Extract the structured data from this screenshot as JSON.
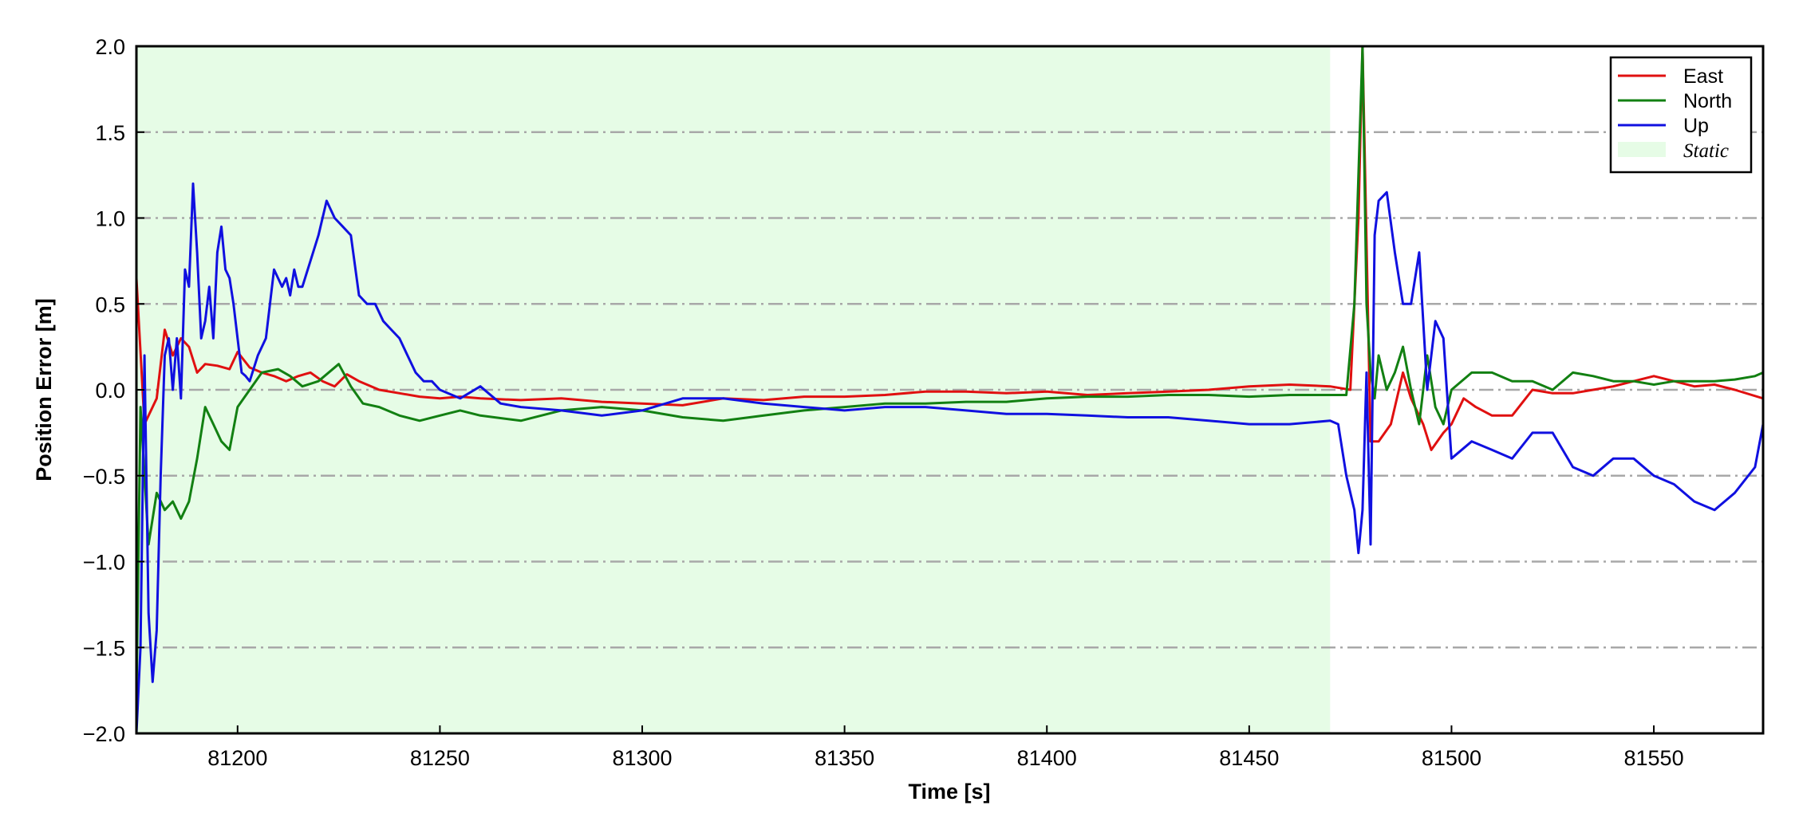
{
  "chart_data": {
    "type": "line",
    "xlabel": "Time [s]",
    "ylabel": "Position Error [m]",
    "xlim": [
      81175,
      81577
    ],
    "ylim": [
      -2.0,
      2.0
    ],
    "xticks": [
      81200,
      81250,
      81300,
      81350,
      81400,
      81450,
      81500,
      81550
    ],
    "xtick_labels": [
      "81200",
      "81250",
      "81300",
      "81350",
      "81400",
      "81450",
      "81500",
      "81550"
    ],
    "yticks": [
      -2.0,
      -1.5,
      -1.0,
      -0.5,
      0.0,
      0.5,
      1.0,
      1.5,
      2.0
    ],
    "ytick_labels": [
      "−2.0",
      "−1.5",
      "−1.0",
      "−0.5",
      "0.0",
      "0.5",
      "1.0",
      "1.5",
      "2.0"
    ],
    "grid": "horizontal dash-dot",
    "legend_position": "top-right",
    "static_interval": {
      "name": "Static",
      "x": [
        81175,
        81470
      ],
      "color": "#e6fce6"
    },
    "series": [
      {
        "name": "East",
        "color": "#e01010",
        "x": [
          81175,
          81177,
          81180,
          81182,
          81184,
          81186,
          81188,
          81190,
          81192,
          81195,
          81198,
          81200,
          81203,
          81206,
          81209,
          81212,
          81215,
          81218,
          81221,
          81224,
          81227,
          81230,
          81235,
          81240,
          81245,
          81250,
          81255,
          81260,
          81270,
          81280,
          81290,
          81300,
          81310,
          81320,
          81330,
          81340,
          81350,
          81360,
          81370,
          81380,
          81390,
          81400,
          81410,
          81420,
          81430,
          81440,
          81450,
          81460,
          81470,
          81475,
          81477,
          81478,
          81480,
          81482,
          81485,
          81488,
          81490,
          81493,
          81495,
          81498,
          81500,
          81503,
          81506,
          81510,
          81515,
          81520,
          81525,
          81530,
          81535,
          81540,
          81545,
          81550,
          81555,
          81560,
          81565,
          81570,
          81577
        ],
        "y": [
          0.65,
          -0.2,
          -0.05,
          0.35,
          0.2,
          0.3,
          0.25,
          0.1,
          0.15,
          0.14,
          0.12,
          0.22,
          0.13,
          0.1,
          0.08,
          0.05,
          0.08,
          0.1,
          0.05,
          0.02,
          0.09,
          0.05,
          0.0,
          -0.02,
          -0.04,
          -0.05,
          -0.04,
          -0.05,
          -0.06,
          -0.05,
          -0.07,
          -0.08,
          -0.09,
          -0.05,
          -0.06,
          -0.04,
          -0.04,
          -0.03,
          -0.01,
          -0.01,
          -0.02,
          -0.01,
          -0.03,
          -0.02,
          -0.01,
          0.0,
          0.02,
          0.03,
          0.02,
          0.0,
          1.0,
          2.0,
          -0.3,
          -0.3,
          -0.2,
          0.1,
          -0.05,
          -0.2,
          -0.35,
          -0.25,
          -0.2,
          -0.05,
          -0.1,
          -0.15,
          -0.15,
          0.0,
          -0.02,
          -0.02,
          0.0,
          0.02,
          0.05,
          0.08,
          0.05,
          0.02,
          0.03,
          0.0,
          -0.05
        ]
      },
      {
        "name": "North",
        "color": "#128012",
        "x": [
          81175,
          81176,
          81178,
          81180,
          81182,
          81184,
          81186,
          81188,
          81190,
          81192,
          81194,
          81196,
          81198,
          81200,
          81203,
          81206,
          81210,
          81213,
          81216,
          81220,
          81225,
          81228,
          81231,
          81235,
          81240,
          81245,
          81250,
          81255,
          81260,
          81270,
          81280,
          81290,
          81300,
          81310,
          81320,
          81330,
          81340,
          81350,
          81360,
          81370,
          81380,
          81390,
          81400,
          81410,
          81420,
          81430,
          81440,
          81450,
          81460,
          81470,
          81474,
          81476,
          81478,
          81479,
          81480,
          81481,
          81482,
          81484,
          81486,
          81488,
          81490,
          81492,
          81494,
          81496,
          81498,
          81500,
          81505,
          81510,
          81515,
          81520,
          81525,
          81530,
          81535,
          81540,
          81545,
          81550,
          81555,
          81560,
          81565,
          81570,
          81575,
          81577
        ],
        "y": [
          -1.8,
          -0.1,
          -0.9,
          -0.6,
          -0.7,
          -0.65,
          -0.75,
          -0.65,
          -0.4,
          -0.1,
          -0.2,
          -0.3,
          -0.35,
          -0.1,
          0.0,
          0.1,
          0.12,
          0.08,
          0.02,
          0.05,
          0.15,
          0.02,
          -0.08,
          -0.1,
          -0.15,
          -0.18,
          -0.15,
          -0.12,
          -0.15,
          -0.18,
          -0.12,
          -0.1,
          -0.12,
          -0.16,
          -0.18,
          -0.15,
          -0.12,
          -0.1,
          -0.08,
          -0.08,
          -0.07,
          -0.07,
          -0.05,
          -0.04,
          -0.04,
          -0.03,
          -0.03,
          -0.04,
          -0.03,
          -0.03,
          -0.03,
          0.5,
          2.0,
          0.5,
          0.1,
          -0.05,
          0.2,
          0.0,
          0.1,
          0.25,
          0.0,
          -0.2,
          0.2,
          -0.1,
          -0.2,
          0.0,
          0.1,
          0.1,
          0.05,
          0.05,
          0.0,
          0.1,
          0.08,
          0.05,
          0.05,
          0.03,
          0.05,
          0.05,
          0.05,
          0.06,
          0.08,
          0.1
        ]
      },
      {
        "name": "Up",
        "color": "#1010e0",
        "x": [
          81175,
          81176,
          81177,
          81178,
          81179,
          81180,
          81181,
          81182,
          81183,
          81184,
          81185,
          81186,
          81187,
          81188,
          81189,
          81190,
          81191,
          81192,
          81193,
          81194,
          81195,
          81196,
          81197,
          81198,
          81199,
          81200,
          81201,
          81202,
          81203,
          81205,
          81207,
          81209,
          81211,
          81212,
          81213,
          81214,
          81215,
          81216,
          81218,
          81220,
          81222,
          81224,
          81226,
          81228,
          81230,
          81232,
          81234,
          81236,
          81238,
          81240,
          81242,
          81244,
          81246,
          81248,
          81250,
          81255,
          81260,
          81265,
          81270,
          81280,
          81290,
          81300,
          81310,
          81320,
          81330,
          81340,
          81350,
          81360,
          81370,
          81380,
          81390,
          81400,
          81410,
          81420,
          81430,
          81440,
          81450,
          81460,
          81470,
          81472,
          81474,
          81476,
          81477,
          81478,
          81479,
          81480,
          81481,
          81482,
          81484,
          81486,
          81488,
          81490,
          81492,
          81494,
          81496,
          81498,
          81500,
          81505,
          81510,
          81515,
          81520,
          81525,
          81530,
          81535,
          81540,
          81545,
          81550,
          81555,
          81560,
          81565,
          81570,
          81575,
          81577
        ],
        "y": [
          -2.0,
          -1.5,
          0.2,
          -1.3,
          -1.7,
          -1.4,
          -0.5,
          0.2,
          0.3,
          0.0,
          0.3,
          -0.05,
          0.7,
          0.6,
          1.2,
          0.8,
          0.3,
          0.4,
          0.6,
          0.3,
          0.8,
          0.95,
          0.7,
          0.65,
          0.5,
          0.3,
          0.1,
          0.08,
          0.05,
          0.2,
          0.3,
          0.7,
          0.6,
          0.65,
          0.55,
          0.7,
          0.6,
          0.6,
          0.75,
          0.9,
          1.1,
          1.0,
          0.95,
          0.9,
          0.55,
          0.5,
          0.5,
          0.4,
          0.35,
          0.3,
          0.2,
          0.1,
          0.05,
          0.05,
          0.0,
          -0.05,
          0.02,
          -0.08,
          -0.1,
          -0.12,
          -0.15,
          -0.12,
          -0.05,
          -0.05,
          -0.08,
          -0.1,
          -0.12,
          -0.1,
          -0.1,
          -0.12,
          -0.14,
          -0.14,
          -0.15,
          -0.16,
          -0.16,
          -0.18,
          -0.2,
          -0.2,
          -0.18,
          -0.2,
          -0.5,
          -0.7,
          -0.95,
          -0.7,
          0.1,
          -0.9,
          0.9,
          1.1,
          1.15,
          0.8,
          0.5,
          0.5,
          0.8,
          0.0,
          0.4,
          0.3,
          -0.4,
          -0.3,
          -0.35,
          -0.4,
          -0.25,
          -0.25,
          -0.45,
          -0.5,
          -0.4,
          -0.4,
          -0.5,
          -0.55,
          -0.65,
          -0.7,
          -0.6,
          -0.45,
          -0.2
        ]
      }
    ]
  }
}
